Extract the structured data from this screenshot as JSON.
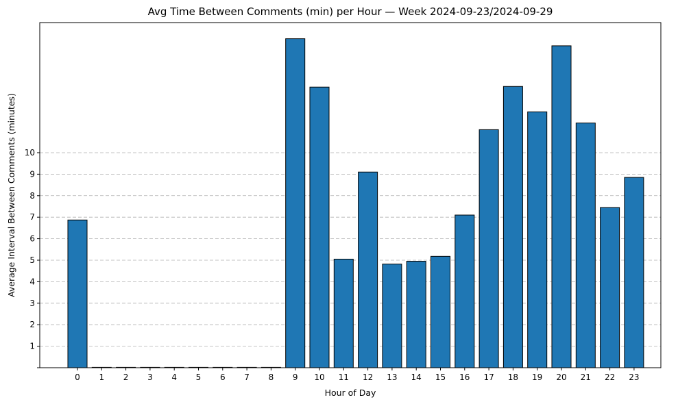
{
  "chart_data": {
    "type": "bar",
    "title": "Avg Time Between Comments (min) per Hour — Week 2024-09-23/2024-09-29",
    "xlabel": "Hour of Day",
    "ylabel": "Average Interval Between Comments (minutes)",
    "categories": [
      "0",
      "1",
      "2",
      "3",
      "4",
      "5",
      "6",
      "7",
      "8",
      "9",
      "10",
      "11",
      "12",
      "13",
      "14",
      "15",
      "16",
      "17",
      "18",
      "19",
      "20",
      "21",
      "22",
      "23"
    ],
    "values": [
      6.87,
      0,
      0,
      0,
      0,
      0,
      0,
      0,
      0,
      15.3,
      13.05,
      5.05,
      9.1,
      4.82,
      4.95,
      5.18,
      7.1,
      11.07,
      13.08,
      11.9,
      14.97,
      11.38,
      7.45,
      8.85
    ],
    "yticks": [
      1,
      2,
      3,
      4,
      5,
      6,
      7,
      8,
      9,
      10
    ],
    "ylim": [
      0,
      16.05
    ],
    "grid": "y-dashed",
    "bar_color": "#1f77b4",
    "edge_color": "#000000"
  }
}
